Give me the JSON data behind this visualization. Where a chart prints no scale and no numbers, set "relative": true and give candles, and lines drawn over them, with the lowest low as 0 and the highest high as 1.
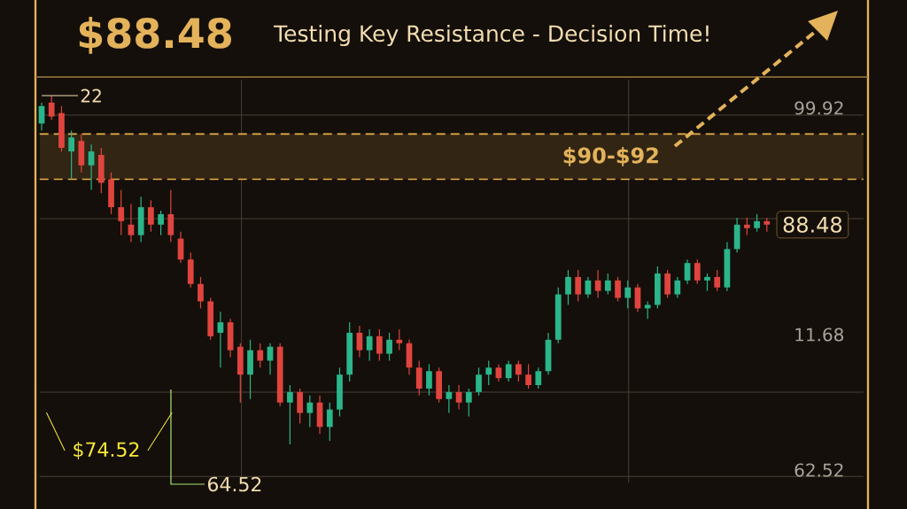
{
  "chart_data": {
    "type": "candlestick",
    "title": "$88.48",
    "subtitle": "Testing Key Resistance - Decision Time!",
    "relative": true,
    "grid": true,
    "categories": [
      null,
      null,
      null,
      null,
      null,
      null,
      null,
      null,
      null,
      null,
      null,
      null,
      null,
      null,
      null,
      null,
      null,
      null,
      null,
      null,
      null,
      null,
      null,
      null,
      null,
      null,
      null,
      null,
      null,
      null,
      null,
      null,
      null,
      null,
      null,
      null,
      null,
      null,
      null,
      null,
      null,
      null,
      null,
      null,
      null,
      null,
      null,
      null,
      null,
      null,
      null,
      null,
      null,
      null,
      null,
      null,
      null,
      null,
      null,
      null,
      null,
      null,
      null,
      null,
      null,
      null,
      null,
      null,
      null,
      null,
      null,
      null,
      null,
      null
    ],
    "ohlc": [
      [
        0.92,
        0.98,
        0.9,
        0.97
      ],
      [
        0.98,
        1.0,
        0.93,
        0.94
      ],
      [
        0.95,
        0.97,
        0.84,
        0.85
      ],
      [
        0.84,
        0.9,
        0.76,
        0.88
      ],
      [
        0.87,
        0.89,
        0.78,
        0.8
      ],
      [
        0.8,
        0.86,
        0.73,
        0.84
      ],
      [
        0.83,
        0.85,
        0.72,
        0.75
      ],
      [
        0.76,
        0.78,
        0.66,
        0.68
      ],
      [
        0.68,
        0.73,
        0.6,
        0.64
      ],
      [
        0.63,
        0.69,
        0.58,
        0.6
      ],
      [
        0.6,
        0.71,
        0.58,
        0.68
      ],
      [
        0.68,
        0.7,
        0.61,
        0.63
      ],
      [
        0.63,
        0.67,
        0.6,
        0.66
      ],
      [
        0.66,
        0.73,
        0.58,
        0.6
      ],
      [
        0.59,
        0.61,
        0.52,
        0.53
      ],
      [
        0.53,
        0.55,
        0.45,
        0.46
      ],
      [
        0.46,
        0.48,
        0.39,
        0.41
      ],
      [
        0.41,
        0.42,
        0.3,
        0.31
      ],
      [
        0.32,
        0.38,
        0.22,
        0.35
      ],
      [
        0.35,
        0.36,
        0.25,
        0.27
      ],
      [
        0.28,
        0.29,
        0.12,
        0.2
      ],
      [
        0.2,
        0.3,
        0.13,
        0.27
      ],
      [
        0.27,
        0.29,
        0.22,
        0.24
      ],
      [
        0.24,
        0.29,
        0.2,
        0.28
      ],
      [
        0.28,
        0.29,
        0.11,
        0.12
      ],
      [
        0.12,
        0.17,
        0.0,
        0.15
      ],
      [
        0.15,
        0.16,
        0.06,
        0.09
      ],
      [
        0.09,
        0.14,
        0.05,
        0.12
      ],
      [
        0.12,
        0.14,
        0.03,
        0.05
      ],
      [
        0.05,
        0.12,
        0.01,
        0.1
      ],
      [
        0.1,
        0.22,
        0.08,
        0.2
      ],
      [
        0.2,
        0.35,
        0.18,
        0.32
      ],
      [
        0.32,
        0.34,
        0.25,
        0.27
      ],
      [
        0.27,
        0.33,
        0.24,
        0.31
      ],
      [
        0.31,
        0.33,
        0.24,
        0.26
      ],
      [
        0.26,
        0.32,
        0.24,
        0.3
      ],
      [
        0.3,
        0.33,
        0.27,
        0.29
      ],
      [
        0.29,
        0.3,
        0.2,
        0.22
      ],
      [
        0.22,
        0.24,
        0.14,
        0.16
      ],
      [
        0.16,
        0.23,
        0.14,
        0.21
      ],
      [
        0.21,
        0.22,
        0.12,
        0.13
      ],
      [
        0.13,
        0.17,
        0.09,
        0.15
      ],
      [
        0.15,
        0.17,
        0.1,
        0.12
      ],
      [
        0.12,
        0.16,
        0.08,
        0.15
      ],
      [
        0.15,
        0.22,
        0.14,
        0.2
      ],
      [
        0.2,
        0.24,
        0.17,
        0.22
      ],
      [
        0.22,
        0.23,
        0.18,
        0.19
      ],
      [
        0.19,
        0.24,
        0.18,
        0.23
      ],
      [
        0.23,
        0.24,
        0.18,
        0.2
      ],
      [
        0.2,
        0.23,
        0.16,
        0.17
      ],
      [
        0.17,
        0.22,
        0.16,
        0.21
      ],
      [
        0.21,
        0.32,
        0.2,
        0.3
      ],
      [
        0.3,
        0.45,
        0.29,
        0.43
      ],
      [
        0.43,
        0.5,
        0.4,
        0.48
      ],
      [
        0.48,
        0.5,
        0.41,
        0.43
      ],
      [
        0.43,
        0.48,
        0.42,
        0.47
      ],
      [
        0.47,
        0.5,
        0.42,
        0.44
      ],
      [
        0.44,
        0.49,
        0.43,
        0.47
      ],
      [
        0.47,
        0.48,
        0.41,
        0.42
      ],
      [
        0.42,
        0.47,
        0.39,
        0.45
      ],
      [
        0.45,
        0.46,
        0.38,
        0.39
      ],
      [
        0.39,
        0.41,
        0.36,
        0.4
      ],
      [
        0.4,
        0.51,
        0.39,
        0.49
      ],
      [
        0.49,
        0.5,
        0.42,
        0.43
      ],
      [
        0.43,
        0.48,
        0.42,
        0.47
      ],
      [
        0.47,
        0.53,
        0.46,
        0.52
      ],
      [
        0.52,
        0.53,
        0.46,
        0.47
      ],
      [
        0.47,
        0.49,
        0.44,
        0.48
      ],
      [
        0.48,
        0.5,
        0.44,
        0.45
      ],
      [
        0.45,
        0.58,
        0.44,
        0.56
      ],
      [
        0.56,
        0.65,
        0.55,
        0.63
      ],
      [
        0.63,
        0.65,
        0.6,
        0.62
      ],
      [
        0.62,
        0.66,
        0.61,
        0.64
      ],
      [
        0.64,
        0.65,
        0.61,
        0.63
      ]
    ],
    "colors": [
      "#2bb58a",
      "#e0443e",
      "#e0443e",
      "#2bb58a",
      "#e0443e",
      "#2bb58a",
      "#e0443e",
      "#e0443e",
      "#e0443e",
      "#e0443e",
      "#2bb58a",
      "#e0443e",
      "#2bb58a",
      "#e0443e",
      "#e0443e",
      "#e0443e",
      "#e0443e",
      "#e0443e",
      "#2bb58a",
      "#e0443e",
      "#e0443e",
      "#2bb58a",
      "#e0443e",
      "#2bb58a",
      "#e0443e",
      "#2bb58a",
      "#e0443e",
      "#2bb58a",
      "#e0443e",
      "#2bb58a",
      "#2bb58a",
      "#2bb58a",
      "#e0443e",
      "#2bb58a",
      "#e0443e",
      "#2bb58a",
      "#e0443e",
      "#e0443e",
      "#e0443e",
      "#2bb58a",
      "#e0443e",
      "#2bb58a",
      "#e0443e",
      "#2bb58a",
      "#2bb58a",
      "#2bb58a",
      "#e0443e",
      "#2bb58a",
      "#e0443e",
      "#e0443e",
      "#2bb58a",
      "#2bb58a",
      "#2bb58a",
      "#2bb58a",
      "#e0443e",
      "#2bb58a",
      "#e0443e",
      "#2bb58a",
      "#e0443e",
      "#2bb58a",
      "#e0443e",
      "#2bb58a",
      "#2bb58a",
      "#e0443e",
      "#2bb58a",
      "#2bb58a",
      "#e0443e",
      "#2bb58a",
      "#e0443e",
      "#2bb58a",
      "#2bb58a",
      "#e0443e",
      "#2bb58a",
      "#e0443e"
    ],
    "bands": [
      {
        "axis": "y",
        "from": 0.76,
        "to": 0.89,
        "label": "$90-$92",
        "color": "#322513"
      }
    ],
    "ref_lines": [
      {
        "axis": "y",
        "value": 0.76,
        "color": "#e8b04a",
        "line_style": "dashed"
      },
      {
        "axis": "y",
        "value": 0.89,
        "color": "#e8b04a",
        "line_style": "dashed"
      }
    ],
    "annotations": [
      "22",
      "$74.52",
      "64.52",
      "99.92",
      "11.68",
      "62.52",
      "88.48"
    ]
  }
}
